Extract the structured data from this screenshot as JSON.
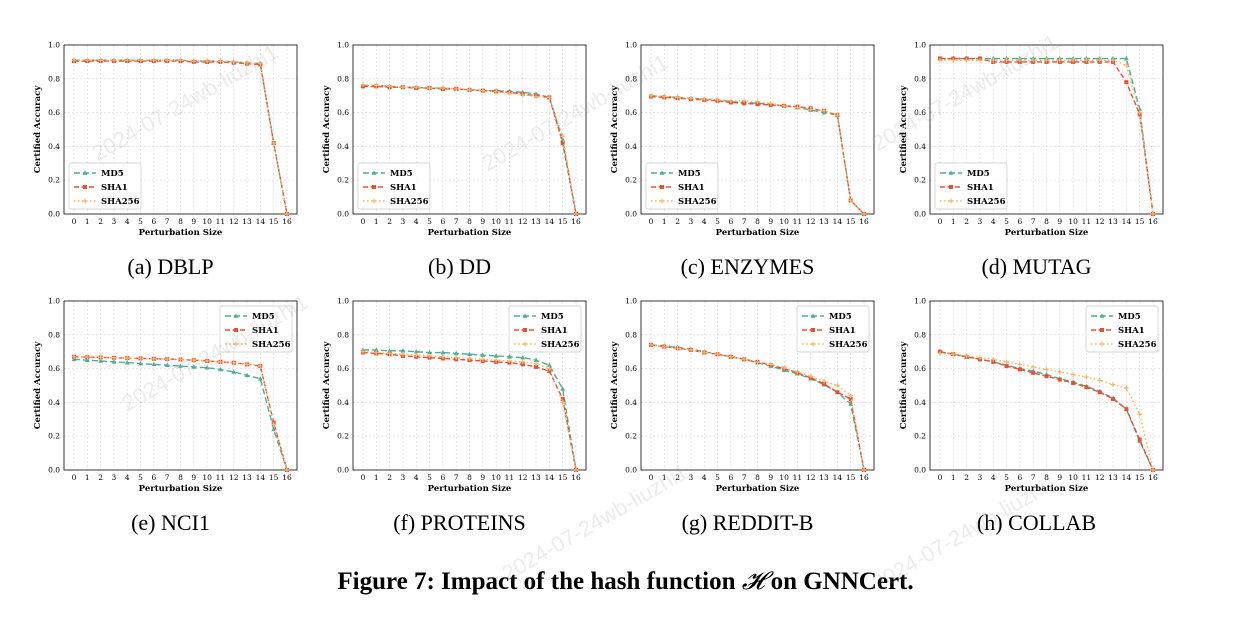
{
  "figure": {
    "caption_prefix": "Figure 7: Impact of the hash function ",
    "caption_symbol": "𝓗",
    "caption_suffix": " on GNNCert.",
    "watermark_text": "2024-07-24wb-liuzhi1"
  },
  "colors": {
    "MD5": "#4fae95",
    "SHA1": "#e0533a",
    "SHA256": "#f4b76b"
  },
  "chart_data": [
    {
      "type": "line",
      "panel_label": "(a) DBLP",
      "xlabel": "Perturbation Size",
      "ylabel": "Certified Accuracy",
      "ylim": [
        0,
        1
      ],
      "grid": true,
      "legend": "bottom-left",
      "x": [
        0,
        1,
        2,
        3,
        4,
        5,
        6,
        7,
        8,
        9,
        10,
        11,
        12,
        13,
        14,
        15,
        16
      ],
      "series": [
        {
          "name": "MD5",
          "values": [
            0.91,
            0.91,
            0.91,
            0.91,
            0.91,
            0.91,
            0.91,
            0.91,
            0.91,
            0.905,
            0.905,
            0.905,
            0.9,
            0.895,
            0.89,
            0.42,
            0.0
          ]
        },
        {
          "name": "SHA1",
          "values": [
            0.905,
            0.905,
            0.905,
            0.905,
            0.905,
            0.905,
            0.905,
            0.905,
            0.905,
            0.9,
            0.9,
            0.9,
            0.895,
            0.89,
            0.885,
            0.42,
            0.0
          ]
        },
        {
          "name": "SHA256",
          "values": [
            0.91,
            0.91,
            0.91,
            0.91,
            0.91,
            0.91,
            0.91,
            0.91,
            0.91,
            0.905,
            0.905,
            0.905,
            0.9,
            0.895,
            0.89,
            0.42,
            0.0
          ]
        }
      ]
    },
    {
      "type": "line",
      "panel_label": "(b) DD",
      "xlabel": "Perturbation Size",
      "ylabel": "Certified Accuracy",
      "ylim": [
        0,
        1
      ],
      "grid": true,
      "legend": "bottom-left",
      "x": [
        0,
        1,
        2,
        3,
        4,
        5,
        6,
        7,
        8,
        9,
        10,
        11,
        12,
        13,
        14,
        15,
        16
      ],
      "series": [
        {
          "name": "MD5",
          "values": [
            0.76,
            0.76,
            0.755,
            0.75,
            0.75,
            0.745,
            0.745,
            0.74,
            0.735,
            0.73,
            0.73,
            0.725,
            0.72,
            0.71,
            0.69,
            0.44,
            0.0
          ]
        },
        {
          "name": "SHA1",
          "values": [
            0.755,
            0.755,
            0.75,
            0.75,
            0.745,
            0.745,
            0.74,
            0.74,
            0.735,
            0.73,
            0.725,
            0.72,
            0.71,
            0.7,
            0.69,
            0.42,
            0.0
          ]
        },
        {
          "name": "SHA256",
          "values": [
            0.765,
            0.76,
            0.755,
            0.75,
            0.75,
            0.745,
            0.745,
            0.74,
            0.735,
            0.73,
            0.725,
            0.715,
            0.705,
            0.695,
            0.69,
            0.46,
            0.0
          ]
        }
      ]
    },
    {
      "type": "line",
      "panel_label": "(c) ENZYMES",
      "xlabel": "Perturbation Size",
      "ylabel": "Certified Accuracy",
      "ylim": [
        0,
        1
      ],
      "grid": true,
      "legend": "bottom-left",
      "x": [
        0,
        1,
        2,
        3,
        4,
        5,
        6,
        7,
        8,
        9,
        10,
        11,
        12,
        13,
        14,
        15,
        16
      ],
      "series": [
        {
          "name": "MD5",
          "values": [
            0.7,
            0.695,
            0.69,
            0.685,
            0.68,
            0.675,
            0.665,
            0.66,
            0.655,
            0.65,
            0.64,
            0.63,
            0.615,
            0.6,
            0.585,
            0.08,
            0.0
          ]
        },
        {
          "name": "SHA1",
          "values": [
            0.695,
            0.69,
            0.685,
            0.68,
            0.675,
            0.67,
            0.66,
            0.655,
            0.65,
            0.645,
            0.64,
            0.635,
            0.625,
            0.61,
            0.585,
            0.08,
            0.0
          ]
        },
        {
          "name": "SHA256",
          "values": [
            0.7,
            0.695,
            0.69,
            0.685,
            0.68,
            0.675,
            0.67,
            0.67,
            0.665,
            0.655,
            0.64,
            0.63,
            0.62,
            0.61,
            0.585,
            0.08,
            0.0
          ]
        }
      ]
    },
    {
      "type": "line",
      "panel_label": "(d) MUTAG",
      "xlabel": "Perturbation Size",
      "ylabel": "Certified Accuracy",
      "ylim": [
        0,
        1
      ],
      "grid": true,
      "legend": "bottom-left",
      "x": [
        0,
        1,
        2,
        3,
        4,
        5,
        6,
        7,
        8,
        9,
        10,
        11,
        12,
        13,
        14,
        15,
        16
      ],
      "series": [
        {
          "name": "MD5",
          "values": [
            0.92,
            0.92,
            0.92,
            0.92,
            0.92,
            0.92,
            0.92,
            0.92,
            0.92,
            0.92,
            0.92,
            0.92,
            0.92,
            0.92,
            0.92,
            0.62,
            0.0
          ]
        },
        {
          "name": "SHA1",
          "values": [
            0.92,
            0.92,
            0.92,
            0.92,
            0.9,
            0.9,
            0.9,
            0.9,
            0.9,
            0.9,
            0.9,
            0.9,
            0.9,
            0.9,
            0.78,
            0.59,
            0.0
          ]
        },
        {
          "name": "SHA256",
          "values": [
            0.91,
            0.91,
            0.91,
            0.91,
            0.91,
            0.91,
            0.91,
            0.91,
            0.91,
            0.91,
            0.91,
            0.91,
            0.91,
            0.91,
            0.88,
            0.6,
            0.0
          ]
        }
      ]
    },
    {
      "type": "line",
      "panel_label": "(e) NCI1",
      "xlabel": "Perturbation Size",
      "ylabel": "Certified Accuracy",
      "ylim": [
        0,
        1
      ],
      "grid": true,
      "legend": "top-right",
      "x": [
        0,
        1,
        2,
        3,
        4,
        5,
        6,
        7,
        8,
        9,
        10,
        11,
        12,
        13,
        14,
        15,
        16
      ],
      "series": [
        {
          "name": "MD5",
          "values": [
            0.655,
            0.65,
            0.645,
            0.64,
            0.635,
            0.63,
            0.625,
            0.62,
            0.615,
            0.61,
            0.605,
            0.595,
            0.58,
            0.56,
            0.54,
            0.24,
            0.0
          ]
        },
        {
          "name": "SHA1",
          "values": [
            0.67,
            0.668,
            0.666,
            0.664,
            0.662,
            0.66,
            0.658,
            0.656,
            0.654,
            0.65,
            0.645,
            0.64,
            0.635,
            0.625,
            0.615,
            0.28,
            0.0
          ]
        },
        {
          "name": "SHA256",
          "values": [
            0.67,
            0.668,
            0.666,
            0.664,
            0.662,
            0.66,
            0.658,
            0.656,
            0.654,
            0.65,
            0.645,
            0.64,
            0.635,
            0.625,
            0.615,
            0.27,
            0.0
          ]
        }
      ]
    },
    {
      "type": "line",
      "panel_label": "(f) PROTEINS",
      "xlabel": "Perturbation Size",
      "ylabel": "Certified Accuracy",
      "ylim": [
        0,
        1
      ],
      "grid": true,
      "legend": "top-right",
      "x": [
        0,
        1,
        2,
        3,
        4,
        5,
        6,
        7,
        8,
        9,
        10,
        11,
        12,
        13,
        14,
        15,
        16
      ],
      "series": [
        {
          "name": "MD5",
          "values": [
            0.71,
            0.71,
            0.705,
            0.705,
            0.7,
            0.695,
            0.695,
            0.69,
            0.685,
            0.68,
            0.675,
            0.67,
            0.665,
            0.65,
            0.62,
            0.48,
            0.0
          ]
        },
        {
          "name": "SHA1",
          "values": [
            0.695,
            0.69,
            0.685,
            0.675,
            0.67,
            0.665,
            0.66,
            0.655,
            0.65,
            0.645,
            0.64,
            0.635,
            0.625,
            0.61,
            0.585,
            0.42,
            0.0
          ]
        },
        {
          "name": "SHA256",
          "values": [
            0.7,
            0.695,
            0.69,
            0.685,
            0.68,
            0.675,
            0.67,
            0.665,
            0.66,
            0.655,
            0.65,
            0.645,
            0.64,
            0.63,
            0.6,
            0.4,
            0.0
          ]
        }
      ]
    },
    {
      "type": "line",
      "panel_label": "(g) REDDIT-B",
      "xlabel": "Perturbation Size",
      "ylabel": "Certified Accuracy",
      "ylim": [
        0,
        1
      ],
      "grid": true,
      "legend": "top-right",
      "x": [
        0,
        1,
        2,
        3,
        4,
        5,
        6,
        7,
        8,
        9,
        10,
        11,
        12,
        13,
        14,
        15,
        16
      ],
      "series": [
        {
          "name": "MD5",
          "values": [
            0.74,
            0.735,
            0.725,
            0.715,
            0.7,
            0.685,
            0.67,
            0.655,
            0.635,
            0.615,
            0.59,
            0.57,
            0.54,
            0.505,
            0.46,
            0.39,
            0.0
          ]
        },
        {
          "name": "SHA1",
          "values": [
            0.74,
            0.73,
            0.72,
            0.71,
            0.695,
            0.685,
            0.67,
            0.655,
            0.64,
            0.62,
            0.6,
            0.575,
            0.545,
            0.51,
            0.46,
            0.42,
            0.0
          ]
        },
        {
          "name": "SHA256",
          "values": [
            0.74,
            0.73,
            0.72,
            0.71,
            0.695,
            0.685,
            0.67,
            0.655,
            0.64,
            0.625,
            0.605,
            0.58,
            0.555,
            0.525,
            0.5,
            0.44,
            0.0
          ]
        }
      ]
    },
    {
      "type": "line",
      "panel_label": "(h) COLLAB",
      "xlabel": "Perturbation Size",
      "ylabel": "Certified Accuracy",
      "ylim": [
        0,
        1
      ],
      "grid": true,
      "legend": "top-right",
      "x": [
        0,
        1,
        2,
        3,
        4,
        5,
        6,
        7,
        8,
        9,
        10,
        11,
        12,
        13,
        14,
        15,
        16
      ],
      "series": [
        {
          "name": "MD5",
          "values": [
            0.7,
            0.685,
            0.67,
            0.655,
            0.64,
            0.62,
            0.6,
            0.585,
            0.565,
            0.54,
            0.52,
            0.495,
            0.465,
            0.425,
            0.36,
            0.17,
            0.0
          ]
        },
        {
          "name": "SHA1",
          "values": [
            0.7,
            0.685,
            0.67,
            0.655,
            0.64,
            0.615,
            0.595,
            0.575,
            0.555,
            0.535,
            0.515,
            0.49,
            0.46,
            0.42,
            0.36,
            0.18,
            0.0
          ]
        },
        {
          "name": "SHA256",
          "values": [
            0.69,
            0.685,
            0.675,
            0.665,
            0.655,
            0.64,
            0.625,
            0.61,
            0.595,
            0.58,
            0.565,
            0.55,
            0.53,
            0.505,
            0.485,
            0.33,
            0.0
          ]
        }
      ]
    }
  ]
}
